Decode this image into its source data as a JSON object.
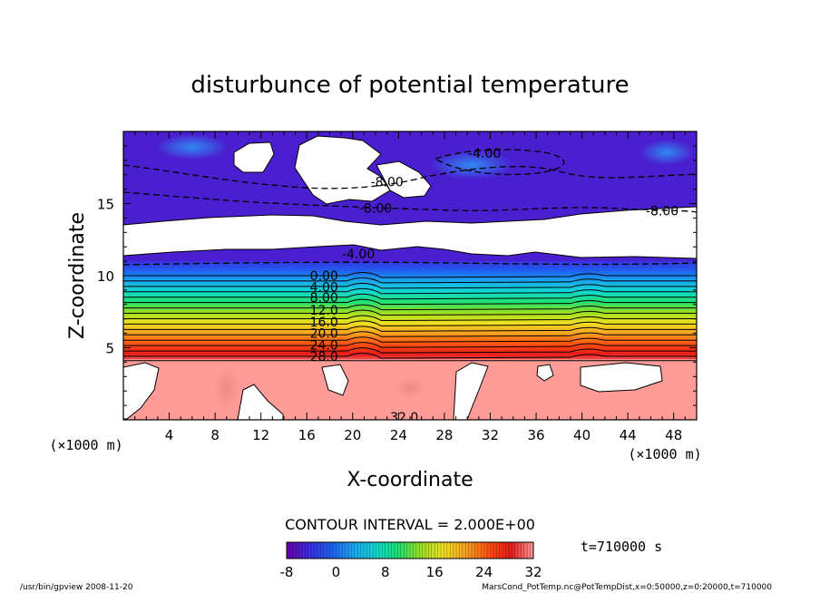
{
  "chart_data": {
    "type": "heatmap",
    "title": "disturbunce of potential temperature",
    "xlabel": "X-coordinate",
    "ylabel": "Z-coordinate",
    "x_unit": "(×1000 m)",
    "y_unit": "(×1000 m)",
    "xlim": [
      0,
      50
    ],
    "ylim": [
      0,
      20
    ],
    "x_ticks": [
      4,
      8,
      12,
      16,
      20,
      24,
      28,
      32,
      36,
      40,
      44,
      48
    ],
    "y_ticks": [
      5,
      10,
      15
    ],
    "contour_interval_text": "CONTOUR INTERVAL = 2.000E+00",
    "time_label": "t=710000 s",
    "colorbar": {
      "min": -8,
      "max": 32,
      "ticks": [
        -8,
        0,
        8,
        16,
        24,
        32
      ],
      "colors": [
        "#6a00a8",
        "#3a2de0",
        "#1f5ff0",
        "#1aa8f0",
        "#10d8d0",
        "#20e070",
        "#9de020",
        "#f0e020",
        "#f7a020",
        "#ff5010",
        "#e81818",
        "#ff9a9a"
      ]
    },
    "contour_labels": [
      {
        "text": "-4.00",
        "x": 31.5,
        "z": 18.5
      },
      {
        "text": "-8.00",
        "x": 23.0,
        "z": 16.5
      },
      {
        "text": "-8.00",
        "x": 22.0,
        "z": 14.7
      },
      {
        "text": "-8.00",
        "x": 47.0,
        "z": 14.5
      },
      {
        "text": "-4.00",
        "x": 20.5,
        "z": 11.5
      },
      {
        "text": "0.00",
        "x": 17.5,
        "z": 10.0
      },
      {
        "text": "4.00",
        "x": 17.5,
        "z": 9.2
      },
      {
        "text": "8.00",
        "x": 17.5,
        "z": 8.5
      },
      {
        "text": "12.0",
        "x": 17.5,
        "z": 7.6
      },
      {
        "text": "16.0",
        "x": 17.5,
        "z": 6.8
      },
      {
        "text": "20.0",
        "x": 17.5,
        "z": 6.0
      },
      {
        "text": "24.0",
        "x": 17.5,
        "z": 5.2
      },
      {
        "text": "28.0",
        "x": 17.5,
        "z": 4.4
      },
      {
        "text": "32.0",
        "x": 24.5,
        "z": 0.2
      }
    ]
  },
  "footer": {
    "left": "/usr/bin/gpview  2008-11-20",
    "right": "MarsCond_PotTemp.nc@PotTempDist,x=0:50000,z=0:20000,t=710000"
  }
}
